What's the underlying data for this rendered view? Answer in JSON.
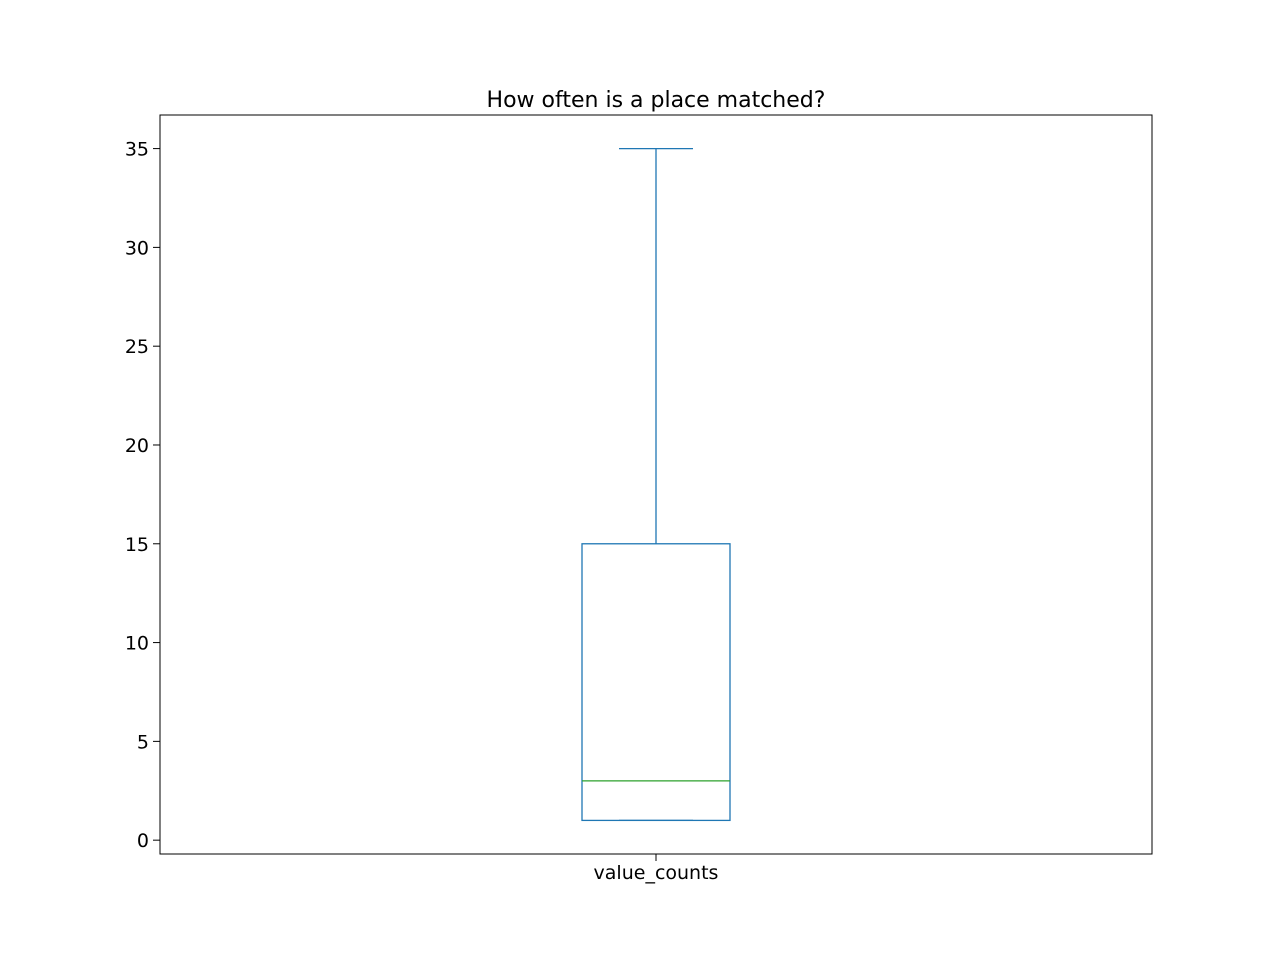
{
  "chart_data": {
    "type": "box",
    "title": "How often is a place matched?",
    "xlabel": "",
    "ylabel": "",
    "categories": [
      "value_counts"
    ],
    "ylim": [
      -0.7,
      36.7
    ],
    "yticks": [
      0,
      5,
      10,
      15,
      20,
      25,
      30,
      35
    ],
    "boxes": [
      {
        "category": "value_counts",
        "whisker_low": 1,
        "q1": 1,
        "median": 3,
        "q3": 15,
        "whisker_high": 35
      }
    ],
    "grid": false,
    "colors": {
      "box": "#1f77b4",
      "median": "#2ca02c",
      "axes": "#000000"
    }
  }
}
